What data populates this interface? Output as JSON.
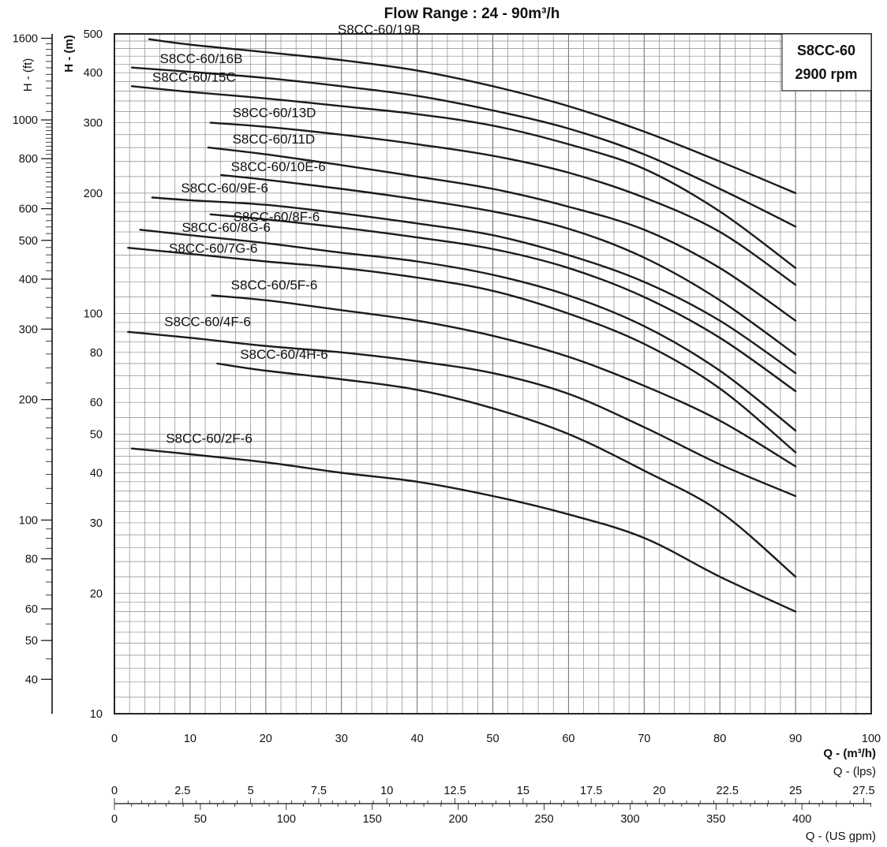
{
  "chart_data": {
    "type": "line",
    "title": "Flow Range : 24 - 90m³/h",
    "model": "S8CC-60",
    "speed": "2900 rpm",
    "x_axis": {
      "label": "Q - (m³/h)",
      "range": [
        0,
        100
      ],
      "ticks": [
        "0",
        "10",
        "20",
        "30",
        "40",
        "50",
        "60",
        "70",
        "80",
        "90",
        "100"
      ]
    },
    "y_axis": {
      "label": "H - (m)",
      "scale": "log",
      "range": [
        10,
        500
      ],
      "ticks": [
        "10",
        "20",
        "30",
        "40",
        "50",
        "60",
        "80",
        "100",
        "200",
        "300",
        "400",
        "500"
      ]
    },
    "y2_axis": {
      "label": "H - (ft)",
      "ticks": [
        "40",
        "50",
        "60",
        "80",
        "100",
        "200",
        "300",
        "400",
        "500",
        "600",
        "800",
        "1000",
        "1600"
      ]
    },
    "x2_axis": {
      "label": "Q - (lps)",
      "ticks": [
        "0",
        "2.5",
        "5",
        "7.5",
        "10",
        "12.5",
        "15",
        "17.5",
        "20",
        "22.5",
        "25",
        "27.5"
      ]
    },
    "x3_axis": {
      "label": "Q - (US gpm)",
      "ticks": [
        "0",
        "50",
        "100",
        "150",
        "200",
        "250",
        "300",
        "350",
        "400"
      ]
    },
    "series": [
      {
        "name": "S8CC-60/19B",
        "x": [
          4.6,
          10,
          20,
          30,
          40,
          50,
          60,
          70,
          80,
          90
        ],
        "y": [
          485,
          470,
          450,
          430,
          405,
          370,
          330,
          285,
          240,
          200
        ]
      },
      {
        "name": "S8CC-60/16B",
        "x": [
          2.3,
          10,
          20,
          30,
          40,
          50,
          60,
          70,
          80,
          90
        ],
        "y": [
          412,
          402,
          388,
          370,
          350,
          322,
          290,
          250,
          205,
          165
        ]
      },
      {
        "name": "S8CC-60/15C",
        "x": [
          2.3,
          10,
          20,
          30,
          40,
          50,
          60,
          70,
          80,
          90
        ],
        "y": [
          370,
          358,
          345,
          330,
          315,
          295,
          265,
          230,
          180,
          130
        ]
      },
      {
        "name": "S8CC-60/13D",
        "x": [
          12.7,
          20,
          30,
          40,
          50,
          60,
          70,
          80,
          90
        ],
        "y": [
          300,
          293,
          280,
          265,
          248,
          225,
          195,
          160,
          118
        ]
      },
      {
        "name": "S8CC-60/11D",
        "x": [
          12.4,
          20,
          30,
          40,
          50,
          60,
          70,
          80,
          90
        ],
        "y": [
          260,
          250,
          235,
          220,
          205,
          185,
          162,
          130,
          96
        ]
      },
      {
        "name": "S8CC-60/10E-6",
        "x": [
          14.1,
          20,
          30,
          40,
          50,
          60,
          70,
          80,
          90
        ],
        "y": [
          222,
          216,
          205,
          193,
          180,
          163,
          138,
          108,
          79
        ]
      },
      {
        "name": "S8CC-60/9E-6",
        "x": [
          5.0,
          10,
          20,
          30,
          40,
          50,
          60,
          70,
          80,
          90
        ],
        "y": [
          195,
          192,
          187,
          178,
          168,
          157,
          140,
          120,
          96,
          71
        ]
      },
      {
        "name": "S8CC-60/8F-6",
        "x": [
          12.7,
          20,
          30,
          40,
          50,
          60,
          70,
          80,
          90
        ],
        "y": [
          177,
          172,
          164,
          155,
          145,
          130,
          110,
          87,
          64
        ]
      },
      {
        "name": "S8CC-60/8G-6",
        "x": [
          3.4,
          10,
          20,
          30,
          40,
          50,
          60,
          70,
          80,
          90
        ],
        "y": [
          162,
          157,
          150,
          142,
          135,
          125,
          111,
          93,
          72,
          51
        ]
      },
      {
        "name": "S8CC-60/7G-6",
        "x": [
          1.8,
          10,
          20,
          30,
          40,
          50,
          60,
          70,
          80,
          90
        ],
        "y": [
          146,
          141,
          135,
          130,
          123,
          114,
          100,
          84,
          65,
          45
        ]
      },
      {
        "name": "S8CC-60/5F-6",
        "x": [
          12.9,
          20,
          30,
          40,
          50,
          60,
          70,
          80,
          90
        ],
        "y": [
          111,
          108,
          102,
          96,
          88,
          78,
          66,
          54,
          41.5
        ]
      },
      {
        "name": "S8CC-60/4F-6",
        "x": [
          1.8,
          10,
          20,
          30,
          40,
          50,
          60,
          70,
          80,
          90
        ],
        "y": [
          90,
          87,
          83,
          80,
          76,
          71,
          63,
          52,
          42,
          35
        ]
      },
      {
        "name": "S8CC-60/4H-6",
        "x": [
          13.6,
          20,
          30,
          40,
          50,
          60,
          70,
          80,
          90
        ],
        "y": [
          75,
          72,
          68.5,
          64.5,
          58,
          50,
          40.5,
          32,
          22
        ]
      },
      {
        "name": "S8CC-60/2F-6",
        "x": [
          2.3,
          10,
          20,
          30,
          40,
          50,
          60,
          70,
          80,
          90
        ],
        "y": [
          46,
          44.5,
          42.5,
          40,
          38,
          35,
          31.5,
          27.5,
          22,
          18
        ]
      }
    ]
  }
}
